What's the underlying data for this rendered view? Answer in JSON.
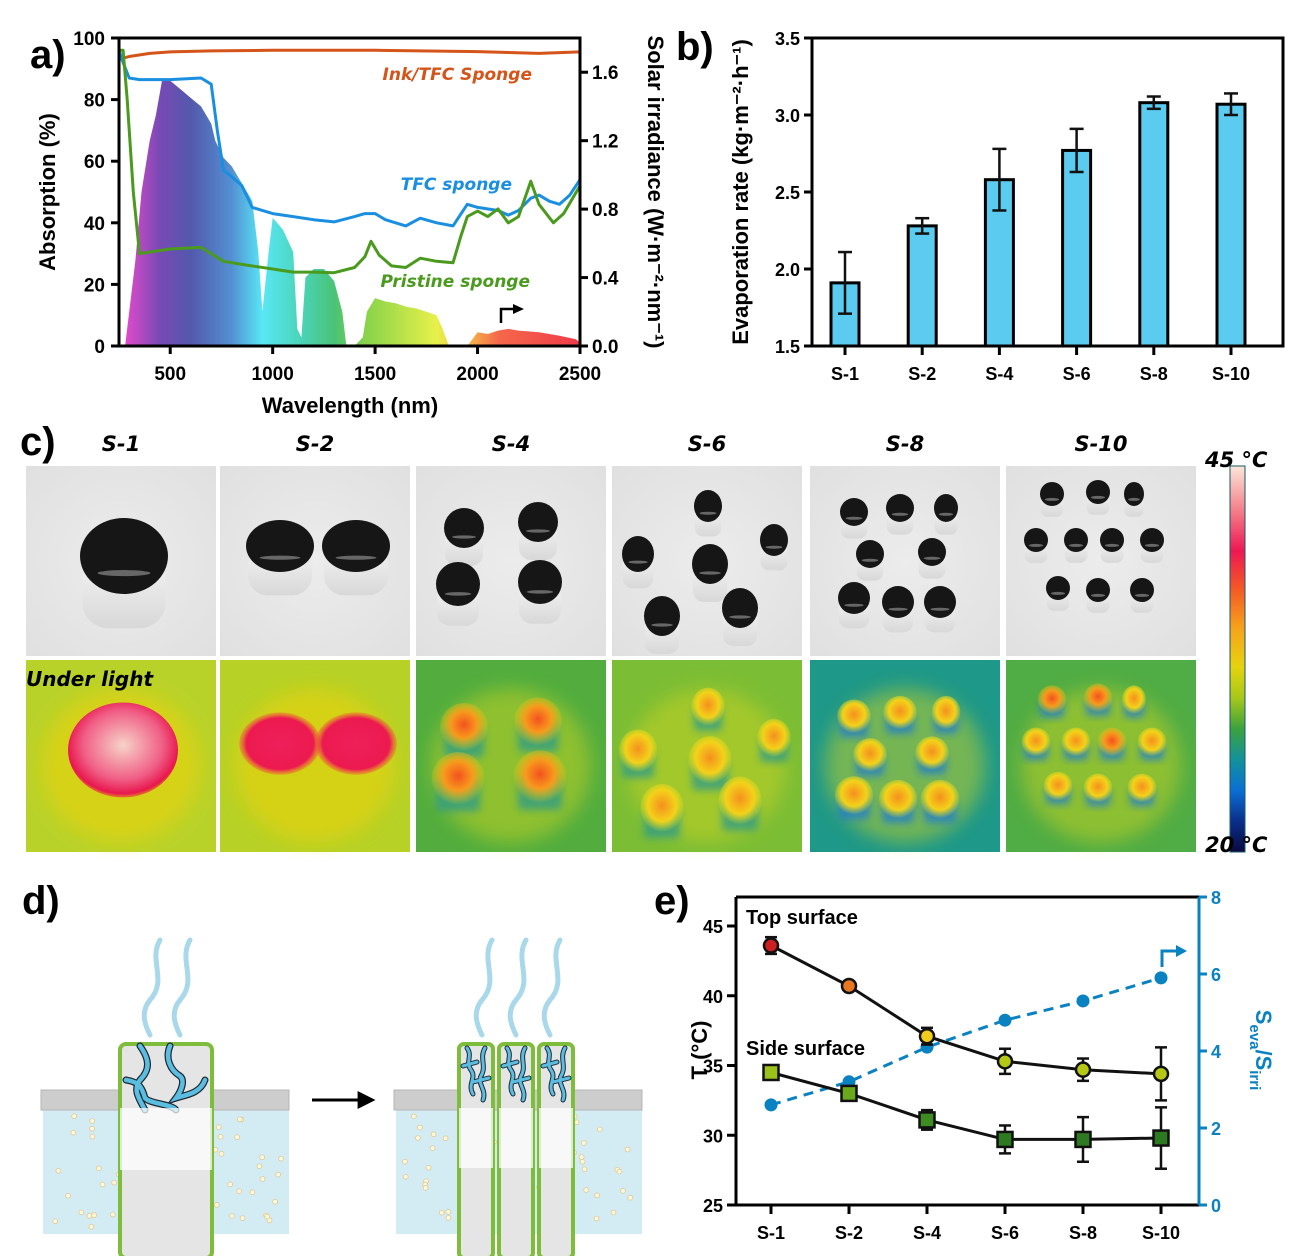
{
  "figure": {
    "panel_labels": {
      "a": "a)",
      "b": "b)",
      "c": "c)",
      "d": "d)",
      "e": "e)"
    }
  },
  "chart_data": [
    {
      "id": "a",
      "type": "line",
      "title": "",
      "xlabel": "Wavelength (nm)",
      "ylabel": "Absorption (%)",
      "y2label": "Solar irradiance (W·m⁻²·nm⁻¹)",
      "xlim": [
        250,
        2500
      ],
      "ylim": [
        0,
        100
      ],
      "y2lim": [
        0,
        1.8
      ],
      "xticks": [
        500,
        1000,
        1500,
        2000,
        2500
      ],
      "yticks": [
        0,
        20,
        40,
        60,
        80,
        100
      ],
      "y2ticks": [
        "0.0",
        "0.4",
        "0.8",
        "1.2",
        "1.6"
      ],
      "y2tick_values": [
        0,
        0.4,
        0.8,
        1.2,
        1.6
      ],
      "series": [
        {
          "name": "Ink/TFC Sponge",
          "color": "#d4541a",
          "x": [
            250,
            300,
            400,
            500,
            700,
            1000,
            1500,
            2000,
            2300,
            2500
          ],
          "y": [
            93,
            94,
            95,
            95.5,
            95.8,
            96,
            96,
            95.6,
            95,
            95.5
          ]
        },
        {
          "name": "TFC sponge",
          "color": "#1a8fe0",
          "x": [
            250,
            270,
            300,
            350,
            500,
            650,
            700,
            730,
            760,
            800,
            850,
            900,
            1000,
            1100,
            1200,
            1300,
            1400,
            1450,
            1500,
            1550,
            1650,
            1720,
            1800,
            1880,
            1950,
            2000,
            2100,
            2150,
            2200,
            2260,
            2300,
            2350,
            2400,
            2450,
            2500
          ],
          "y": [
            96,
            92,
            87,
            86.5,
            86.5,
            87,
            85,
            70,
            57,
            55,
            52,
            45,
            43,
            42,
            41,
            40.3,
            42,
            43,
            43,
            41,
            39,
            41.5,
            40,
            39,
            46,
            45,
            44,
            42.5,
            44,
            48,
            49,
            47,
            46,
            49,
            54
          ]
        },
        {
          "name": "Pristine sponge",
          "color": "#4a9a1e",
          "x": [
            250,
            270,
            290,
            320,
            350,
            500,
            650,
            700,
            760,
            850,
            1000,
            1100,
            1200,
            1300,
            1400,
            1450,
            1480,
            1520,
            1580,
            1650,
            1720,
            1800,
            1880,
            1920,
            1950,
            2000,
            2050,
            2100,
            2150,
            2200,
            2260,
            2300,
            2370,
            2420,
            2500
          ],
          "y": [
            96,
            96,
            80,
            50,
            30,
            31.5,
            32,
            30,
            27.5,
            26.5,
            25,
            24,
            24,
            23.8,
            25.5,
            29,
            34,
            29.5,
            26,
            25.5,
            28.5,
            27.5,
            27,
            36,
            42,
            43.8,
            42,
            44.5,
            40,
            42,
            53.5,
            46,
            40,
            43,
            52
          ]
        }
      ],
      "solar_spectrum": {
        "name": "AM1.5 solar irradiance",
        "x": [
          280,
          300,
          330,
          360,
          400,
          430,
          460,
          500,
          550,
          600,
          650,
          700,
          720,
          760,
          800,
          850,
          900,
          930,
          950,
          980,
          1000,
          1050,
          1100,
          1120,
          1140,
          1160,
          1200,
          1250,
          1300,
          1340,
          1360,
          1400,
          1440,
          1460,
          1500,
          1550,
          1600,
          1650,
          1700,
          1750,
          1800,
          1830,
          1860,
          1950,
          2000,
          2050,
          2100,
          2150,
          2200,
          2300,
          2400,
          2480,
          2500
        ],
        "y": [
          0,
          0.2,
          0.5,
          0.9,
          1.2,
          1.35,
          1.55,
          1.55,
          1.5,
          1.45,
          1.4,
          1.3,
          1.2,
          1.1,
          1.05,
          0.95,
          0.85,
          0.55,
          0.2,
          0.55,
          0.75,
          0.68,
          0.55,
          0.1,
          0.05,
          0.4,
          0.45,
          0.45,
          0.38,
          0.2,
          0,
          0,
          0.05,
          0.2,
          0.28,
          0.26,
          0.25,
          0.23,
          0.22,
          0.2,
          0.18,
          0.1,
          0,
          0,
          0.08,
          0.07,
          0.09,
          0.1,
          0.09,
          0.08,
          0.06,
          0.04,
          0.02
        ]
      },
      "annotations": [
        "Ink/TFC Sponge",
        "TFC sponge",
        "Pristine sponge"
      ]
    },
    {
      "id": "b",
      "type": "bar",
      "title": "",
      "xlabel": "",
      "ylabel": "Evaporation rate (kg·m⁻²·h⁻¹)",
      "categories": [
        "S-1",
        "S-2",
        "S-4",
        "S-6",
        "S-8",
        "S-10"
      ],
      "values": [
        1.91,
        2.28,
        2.58,
        2.77,
        3.08,
        3.07
      ],
      "errors": [
        0.2,
        0.05,
        0.2,
        0.14,
        0.04,
        0.07
      ],
      "ylim": [
        1.5,
        3.5
      ],
      "yticks": [
        "1.5",
        "2.0",
        "2.5",
        "3.0",
        "3.5"
      ],
      "ytick_values": [
        1.5,
        2.0,
        2.5,
        3.0,
        3.5
      ],
      "bar_color": "#5bcbef"
    },
    {
      "id": "e",
      "type": "line",
      "title": "",
      "xlabel": "",
      "ylabel": "T (°C)",
      "y2label_main": "S",
      "y2label_sub1": "eva",
      "y2label_mid": "/S",
      "y2label_sub2": "irri",
      "categories": [
        "S-1",
        "S-2",
        "S-4",
        "S-6",
        "S-8",
        "S-10"
      ],
      "ylim": [
        25,
        47
      ],
      "yticks": [
        25,
        30,
        35,
        40,
        45
      ],
      "y2lim": [
        0,
        8
      ],
      "y2ticks": [
        0,
        2,
        4,
        6,
        8
      ],
      "series": [
        {
          "name": "Top surface",
          "marker": "circle",
          "values": [
            43.6,
            40.7,
            37.1,
            35.3,
            34.7,
            34.4
          ],
          "errors": [
            0.6,
            0.2,
            0.6,
            0.9,
            0.8,
            1.9
          ],
          "marker_colors": [
            "#cc1f1f",
            "#e87722",
            "#f2cc1a",
            "#b5c914",
            "#b5c914",
            "#b5c914"
          ]
        },
        {
          "name": "Side surface",
          "marker": "square",
          "values": [
            34.5,
            33.0,
            31.1,
            29.7,
            29.7,
            29.8
          ],
          "errors": [
            0.5,
            0.5,
            0.7,
            1.0,
            1.6,
            2.2
          ],
          "marker_colors": [
            "#9ac21a",
            "#6aa81e",
            "#3f8c22",
            "#2e7a22",
            "#2e7a22",
            "#2e7a22"
          ]
        },
        {
          "name": "Seva/Sirri",
          "axis": "right",
          "marker": "circle",
          "dashed": true,
          "color": "#0a82c2",
          "values": [
            2.6,
            3.2,
            4.1,
            4.8,
            5.3,
            5.9
          ]
        }
      ],
      "annotations": [
        "Top surface",
        "Side surface"
      ]
    }
  ],
  "panel_c": {
    "columns": [
      "S-1",
      "S-2",
      "S-4",
      "S-6",
      "S-8",
      "S-10"
    ],
    "row_label": "Under light",
    "colorbar": {
      "max_label": "45 °C",
      "min_label": "20 °C",
      "max": 45,
      "min": 20
    }
  },
  "panel_d": {
    "description": "Schematic: single large sponge vs. multiple slender sponges floating in water with vapor rising"
  }
}
